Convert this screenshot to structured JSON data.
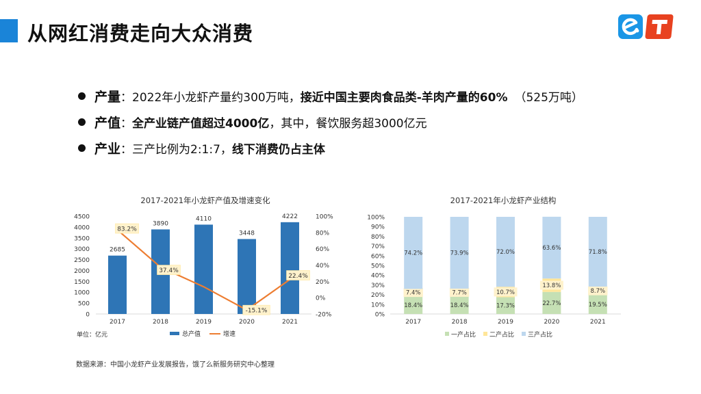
{
  "page": {
    "title": "从网红消费走向大众消费",
    "source": "数据来源：中国小龙虾产业发展报告，饿了么新服务研究中心整理",
    "accent_color": "#1a84d8"
  },
  "logos": [
    {
      "name": "eleme-logo-icon",
      "color": "#1a96e6"
    },
    {
      "name": "t-logo-icon",
      "color": "#e84220"
    }
  ],
  "bullets": [
    {
      "key": "产量",
      "sep": "：",
      "text1": "2022年小龙虾产量约300万吨，",
      "bold": "接近中国主要肉食品类-羊肉产量的60%",
      "text2": "（525万吨）"
    },
    {
      "key": "产值",
      "sep": "：",
      "text1": "",
      "bold": "全产业链产值超过4000亿",
      "text2": "，其中，餐饮服务超3000亿元"
    },
    {
      "key": "产业",
      "sep": "：",
      "text1": "三产比例为2:1:7，",
      "bold": "线下消费仍占主体",
      "text2": ""
    }
  ],
  "chart_data": [
    {
      "type": "bar",
      "title": "2017-2021年小龙虾产值及增速变化",
      "categories": [
        "2017",
        "2018",
        "2019",
        "2020",
        "2021"
      ],
      "series": [
        {
          "name": "总产值",
          "type": "bar",
          "axis": "left",
          "values": [
            2685,
            3890,
            4110,
            3448,
            4222
          ],
          "color": "#2e75b6"
        },
        {
          "name": "增速",
          "type": "line",
          "axis": "right",
          "values": [
            83.2,
            37.4,
            13.4,
            -15.1,
            22.4
          ],
          "labels": [
            "83.2%",
            "37.4%",
            "",
            "-15.1%",
            "22.4%"
          ],
          "color": "#ed7d31"
        }
      ],
      "ylim": [
        0,
        4500
      ],
      "yticks": [
        0,
        500,
        1000,
        1500,
        2000,
        2500,
        3000,
        3500,
        4000,
        4500
      ],
      "y2lim": [
        -20,
        100
      ],
      "y2ticks": [
        "-20%",
        "0%",
        "20%",
        "40%",
        "60%",
        "80%",
        "100%"
      ],
      "unit_note": "单位：亿元",
      "legend": "bottom"
    },
    {
      "type": "bar",
      "stacked": true,
      "title": "2017-2021年小龙虾产业结构",
      "categories": [
        "2017",
        "2018",
        "2019",
        "2020",
        "2021"
      ],
      "series": [
        {
          "name": "一产占比",
          "values": [
            18.4,
            18.4,
            17.3,
            22.7,
            19.5
          ],
          "labels": [
            "18.4%",
            "18.4%",
            "17.3%",
            "22.7%",
            "19.5%"
          ],
          "color": "#c5e0b4"
        },
        {
          "name": "二产占比",
          "values": [
            7.4,
            7.7,
            10.7,
            13.8,
            8.7
          ],
          "labels": [
            "7.4%",
            "7.7%",
            "10.7%",
            "13.8%",
            "8.7%"
          ],
          "color": "#ffe699"
        },
        {
          "name": "三产占比",
          "values": [
            74.2,
            73.9,
            72.0,
            63.6,
            71.8
          ],
          "labels": [
            "74.2%",
            "73.9%",
            "72.0%",
            "63.6%",
            "71.8%"
          ],
          "color": "#bdd7ee"
        }
      ],
      "ylim": [
        0,
        100
      ],
      "yticks": [
        "0%",
        "10%",
        "20%",
        "30%",
        "40%",
        "50%",
        "60%",
        "70%",
        "80%",
        "90%",
        "100%"
      ],
      "legend": "bottom"
    }
  ]
}
